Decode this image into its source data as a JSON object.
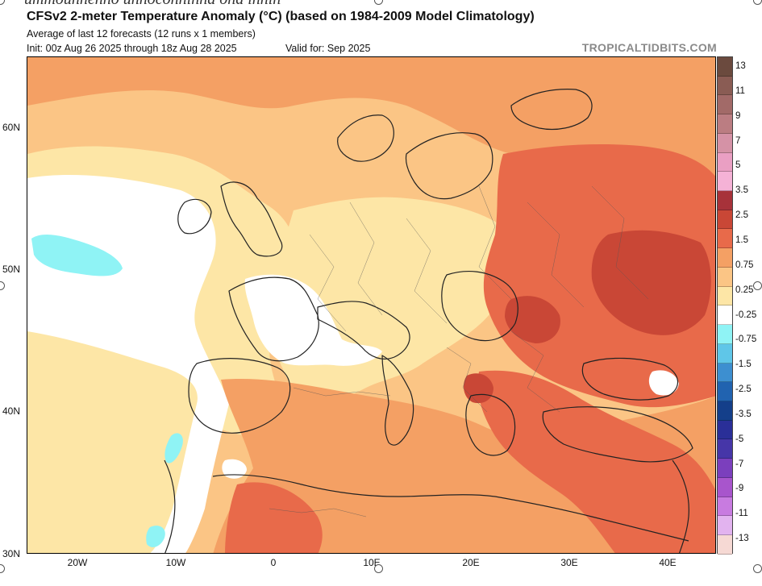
{
  "partial_text": "ummounnenno unnoconninna ona innin",
  "header": {
    "title": "CFSv2 2-meter Temperature Anomaly (°C) (based on 1984-2009 Model Climatology)",
    "subtitle": "Average of last 12 forecasts (12 runs x 1 members)",
    "init": "Init: 00z Aug 26 2025 through 18z Aug 28 2025",
    "valid": "Valid for: Sep 2025",
    "brand": "TROPICALTIDBITS.COM"
  },
  "map": {
    "latitude_labels": [
      "60N",
      "50N",
      "40N",
      "30N"
    ],
    "longitude_labels": [
      "20W",
      "10W",
      "0",
      "10E",
      "20E",
      "30E",
      "40E"
    ]
  },
  "colorbar": {
    "labels": [
      "13",
      "11",
      "9",
      "7",
      "5",
      "3.5",
      "2.5",
      "1.5",
      "0.75",
      "0.25",
      "-0.25",
      "-0.75",
      "-1.5",
      "-2.5",
      "-3.5",
      "-5",
      "-7",
      "-9",
      "-11",
      "-13"
    ],
    "colors": [
      "#6b4a3e",
      "#8a5c54",
      "#a26a68",
      "#bb7d82",
      "#d592a6",
      "#ea9fc3",
      "#f5b2d6",
      "#a7323a",
      "#c94736",
      "#e86a4a",
      "#f4a064",
      "#fbc585",
      "#fde6a6",
      "#ffffff",
      "#8ff3f5",
      "#5fc6e8",
      "#3d8fd0",
      "#2163b0",
      "#143f8a",
      "#2a2f98",
      "#4636a8",
      "#7b3fbd",
      "#a855cc",
      "#c87be0",
      "#e2b3ef",
      "#f6d9d4"
    ]
  },
  "regions": {
    "pale_yellow": "#fde6a6",
    "light_orange": "#fbc585",
    "orange": "#f4a064",
    "red_orange": "#e86a4a",
    "red": "#c94736",
    "white": "#ffffff",
    "cyan": "#8ff3f5"
  }
}
